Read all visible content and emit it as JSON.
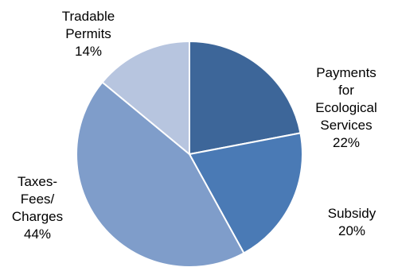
{
  "chart_data": {
    "type": "pie",
    "slices": [
      {
        "label": "Payments for Ecological Services",
        "label_lines": [
          "Payments",
          "for",
          "Ecological",
          "Services"
        ],
        "pct_text": "22%",
        "value": 22,
        "color": "#3d6699"
      },
      {
        "label": "Subsidy",
        "label_lines": [
          "Subsidy"
        ],
        "pct_text": "20%",
        "value": 20,
        "color": "#4a7ab5"
      },
      {
        "label": "Taxes-Fees/Charges",
        "label_lines": [
          "Taxes-",
          "Fees/",
          "Charges"
        ],
        "pct_text": "44%",
        "value": 44,
        "color": "#7f9dca"
      },
      {
        "label": "Tradable Permits",
        "label_lines": [
          "Tradable",
          "Permits"
        ],
        "pct_text": "14%",
        "value": 14,
        "color": "#b7c5df"
      }
    ],
    "start_angle": "12 o'clock",
    "direction": "clockwise",
    "edge_color": "#ffffff"
  }
}
